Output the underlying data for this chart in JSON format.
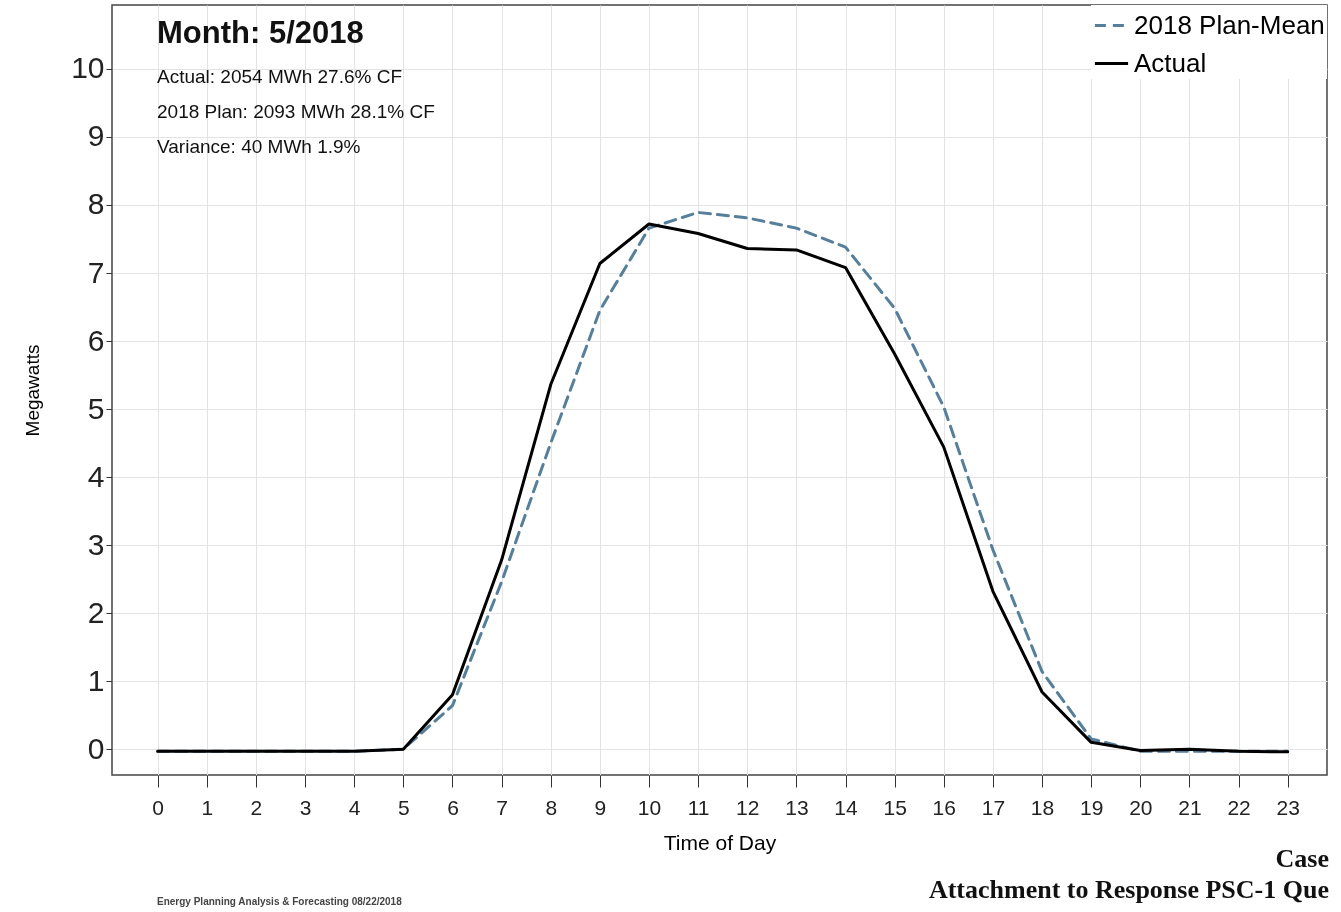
{
  "chart_data": {
    "type": "line",
    "title": "Month: 5/2018",
    "xlabel": "Time of Day",
    "ylabel": "Megawatts",
    "annotations": [
      "Actual: 2054 MWh 27.6% CF",
      "2018 Plan: 2093 MWh 28.1% CF",
      "Variance: 40 MWh 1.9%",
      "Energy Planning Analysis & Forecasting 08/22/2018",
      "Case",
      "Attachment to Response PSC-1 Que"
    ],
    "x": [
      0,
      1,
      2,
      3,
      4,
      5,
      6,
      7,
      8,
      9,
      10,
      11,
      12,
      13,
      14,
      15,
      16,
      17,
      18,
      19,
      20,
      21,
      22,
      23
    ],
    "series": [
      {
        "name": "2018 Plan-Mean",
        "color": "#557f9b",
        "line_style": "dashed",
        "values": [
          -0.03,
          -0.03,
          -0.03,
          -0.03,
          -0.03,
          0,
          0.64,
          2.46,
          4.5,
          6.45,
          7.66,
          7.89,
          7.81,
          7.66,
          7.38,
          6.48,
          5.03,
          2.93,
          1.14,
          0.15,
          -0.03,
          -0.03,
          -0.03,
          -0.03
        ]
      },
      {
        "name": "Actual",
        "color": "#000000",
        "line_style": "solid",
        "values": [
          -0.03,
          -0.03,
          -0.03,
          -0.03,
          -0.03,
          0,
          0.8,
          2.78,
          5.36,
          7.14,
          7.72,
          7.58,
          7.36,
          7.34,
          7.08,
          5.81,
          4.44,
          2.32,
          0.84,
          0.1,
          -0.02,
          0,
          -0.03,
          -0.04
        ]
      }
    ],
    "xlim": [
      -0.93,
      23.8
    ],
    "ylim": [
      -0.38,
      10.94
    ],
    "xticks": [
      0,
      1,
      2,
      3,
      4,
      5,
      6,
      7,
      8,
      9,
      10,
      11,
      12,
      13,
      14,
      15,
      16,
      17,
      18,
      19,
      20,
      21,
      22,
      23
    ],
    "yticks": [
      0,
      1,
      2,
      3,
      4,
      5,
      6,
      7,
      8,
      9,
      10
    ],
    "grid": true,
    "legend": "top right"
  }
}
